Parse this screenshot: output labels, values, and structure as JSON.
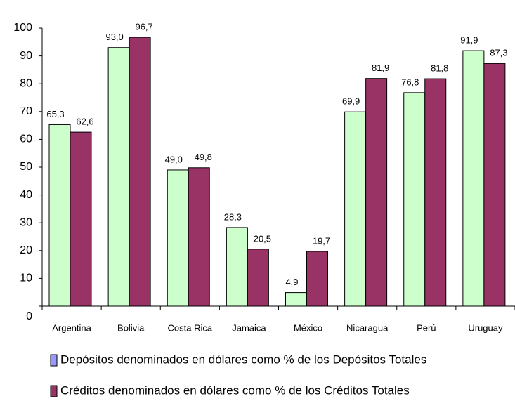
{
  "chart_data": {
    "type": "bar",
    "categories": [
      "Argentina",
      "Bolivia",
      "Costa Rica",
      "Jamaica",
      "México",
      "Nicaragua",
      "Perú",
      "Uruguay"
    ],
    "series": [
      {
        "name": "Depósitos denominados en dólares como % de los Depósitos Totales",
        "color": "#ccffcc",
        "values": [
          65.3,
          93.0,
          49.0,
          28.3,
          4.9,
          69.9,
          76.8,
          91.9
        ],
        "value_labels": [
          "65,3",
          "93,0",
          "49,0",
          "28,3",
          "4,9",
          "69,9",
          "76,8",
          "91,9"
        ]
      },
      {
        "name": "Créditos denominados en dólares como % de los Créditos Totales",
        "color": "#993366",
        "values": [
          62.6,
          96.7,
          49.8,
          20.5,
          19.7,
          81.9,
          81.8,
          87.3
        ],
        "value_labels": [
          "62,6",
          "96,7",
          "49,8",
          "20,5",
          "19,7",
          "81,9",
          "81,8",
          "87,3"
        ]
      }
    ],
    "legend_colors": [
      "#9999ff",
      "#993366"
    ],
    "ylim": [
      0,
      100
    ],
    "yticks": [
      0,
      10,
      20,
      30,
      40,
      50,
      60,
      70,
      80,
      90,
      100
    ]
  }
}
